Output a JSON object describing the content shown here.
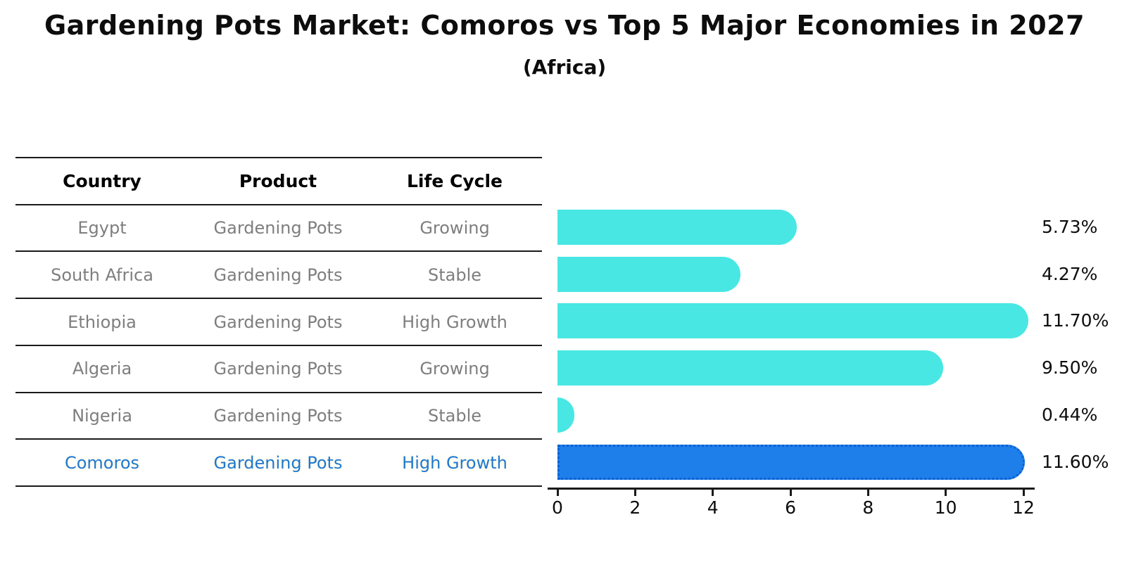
{
  "title": "Gardening Pots Market: Comoros vs Top 5 Major Economies in 2027",
  "subtitle": "(Africa)",
  "table": {
    "headers": [
      "Country",
      "Product",
      "Life Cycle"
    ],
    "rows": [
      {
        "country": "Egypt",
        "product": "Gardening Pots",
        "life_cycle": "Growing",
        "highlight": false
      },
      {
        "country": "South Africa",
        "product": "Gardening Pots",
        "life_cycle": "Stable",
        "highlight": false
      },
      {
        "country": "Ethiopia",
        "product": "Gardening Pots",
        "life_cycle": "High Growth",
        "highlight": false
      },
      {
        "country": "Algeria",
        "product": "Gardening Pots",
        "life_cycle": "Growing",
        "highlight": false
      },
      {
        "country": "Nigeria",
        "product": "Gardening Pots",
        "life_cycle": "Stable",
        "highlight": false
      },
      {
        "country": "Comoros",
        "product": "Gardening Pots",
        "life_cycle": "High Growth",
        "highlight": true
      }
    ]
  },
  "chart_data": {
    "type": "bar",
    "orientation": "horizontal",
    "categories": [
      "Egypt",
      "South Africa",
      "Ethiopia",
      "Algeria",
      "Nigeria",
      "Comoros"
    ],
    "values": [
      5.73,
      4.27,
      11.7,
      9.5,
      0.44,
      11.6
    ],
    "value_labels": [
      "5.73%",
      "4.27%",
      "11.70%",
      "9.50%",
      "0.44%",
      "11.60%"
    ],
    "highlight_index": 5,
    "xlim": [
      0,
      12
    ],
    "x_ticks": [
      0,
      2,
      4,
      6,
      8,
      10,
      12
    ],
    "xlabel": "",
    "ylabel": "",
    "grid": false,
    "legend": false,
    "bar_color": "#48e7e3",
    "highlight_bar_color": "#1e7feb",
    "highlight_border_color": "#0d5fd0",
    "highlight_text_color": "#1f78d1"
  }
}
